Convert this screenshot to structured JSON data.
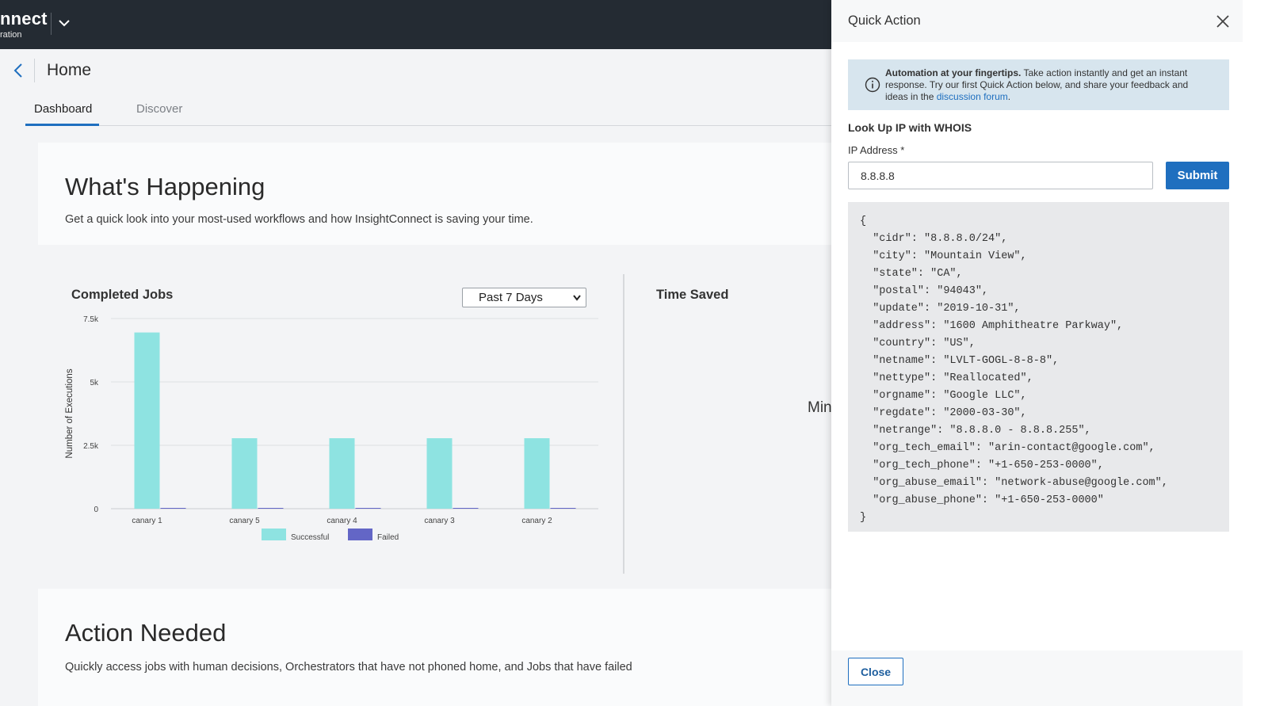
{
  "app": {
    "brand_name": "nnect",
    "brand_sub": "ration"
  },
  "page": {
    "title": "Home"
  },
  "tabs": [
    {
      "label": "Dashboard",
      "active": true
    },
    {
      "label": "Discover",
      "active": false
    }
  ],
  "whats_happening": {
    "title": "What's Happening",
    "description": "Get a quick look into your most-used workflows and how InsightConnect is saving your time."
  },
  "completed_jobs": {
    "title": "Completed Jobs",
    "range_selected": "Past 7 Days"
  },
  "time_saved": {
    "title": "Time Saved",
    "cut_text": "Min"
  },
  "action_needed": {
    "title": "Action Needed",
    "description": "Quickly access jobs with human decisions, Orchestrators that have not phoned home, and Jobs that have failed"
  },
  "chart_data": {
    "type": "bar",
    "title": "",
    "xlabel": "",
    "ylabel": "Number of Executions",
    "categories": [
      "canary 1",
      "canary 5",
      "canary 4",
      "canary 3",
      "canary 2"
    ],
    "series": [
      {
        "name": "Successful",
        "values": [
          6950,
          2780,
          2780,
          2780,
          2780
        ],
        "color": "#8ee3e1"
      },
      {
        "name": "Failed",
        "values": [
          0,
          0,
          0,
          0,
          0
        ],
        "color": "#6366c6"
      }
    ],
    "ylim": [
      0,
      7500
    ],
    "yticks": [
      0,
      2500,
      5000,
      7500
    ],
    "ytick_labels": [
      "0",
      "2.5k",
      "5k",
      "7.5k"
    ],
    "grid": true,
    "legend": "bottom"
  },
  "quick_action": {
    "title": "Quick Action",
    "info_bold": "Automation at your fingertips.",
    "info_text": " Take action instantly and get an instant response. Try our first Quick Action below, and share your feedback and ideas in the ",
    "info_link": "discussion forum",
    "info_end": ".",
    "lookup_title": "Look Up IP with WHOIS",
    "ip_label": "IP Address *",
    "ip_value": "8.8.8.8",
    "submit_label": "Submit",
    "close_label": "Close",
    "result_lines": [
      "{",
      "  \"cidr\": \"8.8.8.0/24\",",
      "  \"city\": \"Mountain View\",",
      "  \"state\": \"CA\",",
      "  \"postal\": \"94043\",",
      "  \"update\": \"2019-10-31\",",
      "  \"address\": \"1600 Amphitheatre Parkway\",",
      "  \"country\": \"US\",",
      "  \"netname\": \"LVLT-GOGL-8-8-8\",",
      "  \"nettype\": \"Reallocated\",",
      "  \"orgname\": \"Google LLC\",",
      "  \"regdate\": \"2000-03-30\",",
      "  \"netrange\": \"8.8.8.0 - 8.8.8.255\",",
      "  \"org_tech_email\": \"arin-contact@google.com\",",
      "  \"org_tech_phone\": \"+1-650-253-0000\",",
      "  \"org_abuse_email\": \"network-abuse@google.com\",",
      "  \"org_abuse_phone\": \"+1-650-253-0000\"",
      "}"
    ]
  },
  "icons": {
    "back": "chevron-left-icon",
    "app_switcher": "chevron-down-icon",
    "info": "info-circle-icon",
    "close": "close-icon"
  },
  "colors": {
    "topbar": "#242b33",
    "accent": "#1f6fbf",
    "info_bg": "#d7e5ee"
  }
}
